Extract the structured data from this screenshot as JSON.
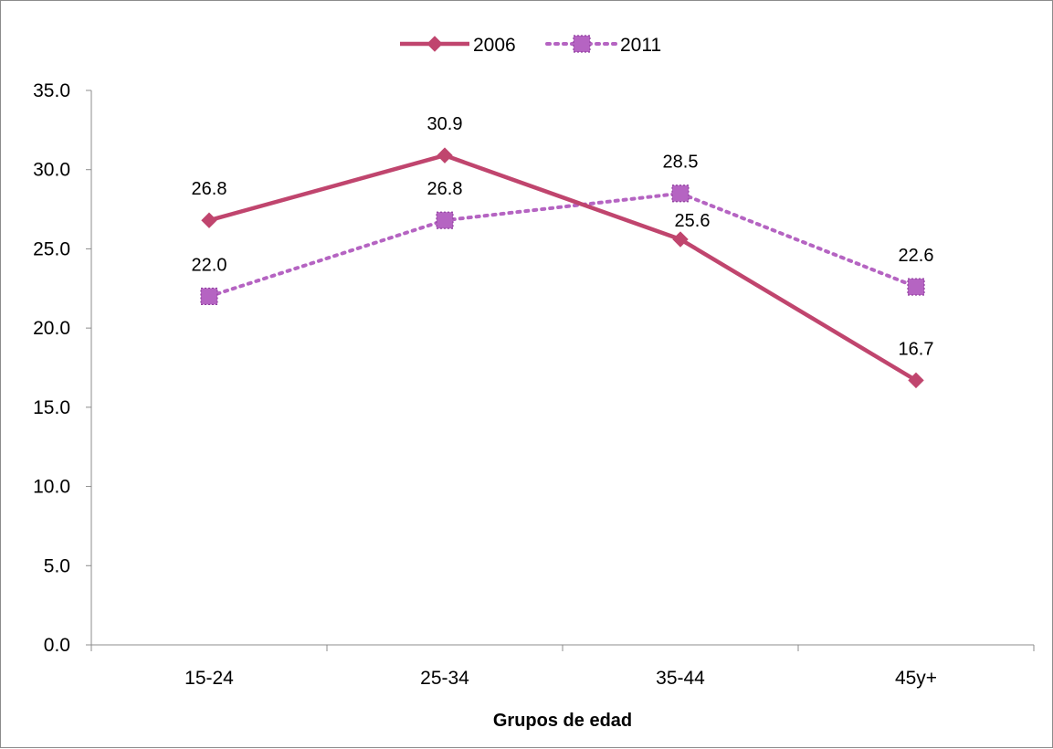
{
  "chart_data": {
    "type": "line",
    "title": "",
    "xlabel": "Grupos de edad",
    "ylabel": "",
    "categories": [
      "15-24",
      "25-34",
      "35-44",
      "45y+"
    ],
    "ylim": [
      0,
      35
    ],
    "yticks": [
      0,
      5,
      10,
      15,
      20,
      25,
      30,
      35
    ],
    "ytick_labels": [
      "0.0",
      "5.0",
      "10.0",
      "15.0",
      "20.0",
      "25.0",
      "30.0",
      "35.0"
    ],
    "grid": false,
    "legend_position": "top-center",
    "series": [
      {
        "name": "2006",
        "values": [
          26.8,
          30.9,
          25.6,
          16.7
        ],
        "labels": [
          "26.8",
          "30.9",
          "25.6",
          "16.7"
        ],
        "color": "#c0456e",
        "line_style": "solid",
        "marker": "diamond"
      },
      {
        "name": "2011",
        "values": [
          22.0,
          26.8,
          28.5,
          22.6
        ],
        "labels": [
          "22.0",
          "26.8",
          "28.5",
          "22.6"
        ],
        "color": "#b564c2",
        "line_style": "dotted",
        "marker": "square"
      }
    ]
  }
}
